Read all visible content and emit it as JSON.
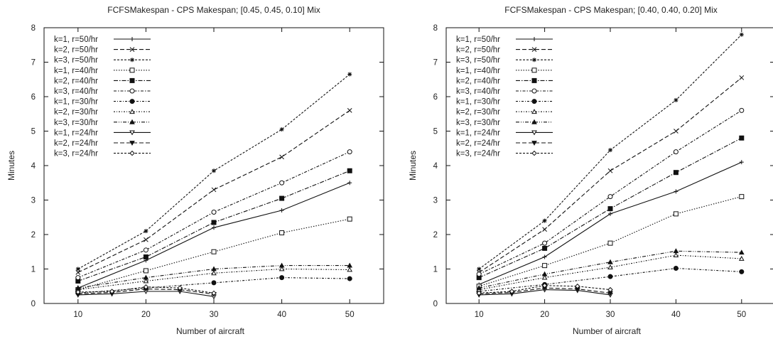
{
  "chart_data": [
    {
      "type": "line",
      "title": "FCFSMakespan - CPS Makespan; [0.45, 0.45, 0.10] Mix",
      "xlabel": "Number of aircraft",
      "ylabel": "Minutes",
      "xlim": [
        5,
        55
      ],
      "ylim": [
        0,
        8
      ],
      "xticks": [
        10,
        20,
        30,
        40,
        50
      ],
      "yticks": [
        0,
        1,
        2,
        3,
        4,
        5,
        6,
        7,
        8
      ],
      "grid": false,
      "legend_position": "top-left",
      "series": [
        {
          "name": "k=1, r=50/hr",
          "marker": "plus",
          "dash": "solid",
          "points": [
            [
              10,
              0.45
            ],
            [
              20,
              1.25
            ],
            [
              30,
              2.2
            ],
            [
              40,
              2.7
            ],
            [
              50,
              3.5
            ]
          ]
        },
        {
          "name": "k=2, r=50/hr",
          "marker": "x",
          "dash": "dash",
          "points": [
            [
              10,
              0.9
            ],
            [
              20,
              1.85
            ],
            [
              30,
              3.3
            ],
            [
              40,
              4.25
            ],
            [
              50,
              5.6
            ]
          ]
        },
        {
          "name": "k=3, r=50/hr",
          "marker": "star",
          "dash": "shortdash",
          "points": [
            [
              10,
              1.0
            ],
            [
              20,
              2.1
            ],
            [
              30,
              3.85
            ],
            [
              40,
              5.05
            ],
            [
              50,
              6.65
            ]
          ]
        },
        {
          "name": "k=1, r=40/hr",
          "marker": "square-open",
          "dash": "dot",
          "points": [
            [
              10,
              0.4
            ],
            [
              20,
              0.95
            ],
            [
              30,
              1.5
            ],
            [
              40,
              2.05
            ],
            [
              50,
              2.45
            ]
          ]
        },
        {
          "name": "k=2, r=40/hr",
          "marker": "square-filled",
          "dash": "dashdot",
          "points": [
            [
              10,
              0.65
            ],
            [
              20,
              1.35
            ],
            [
              30,
              2.35
            ],
            [
              40,
              3.05
            ],
            [
              50,
              3.85
            ]
          ]
        },
        {
          "name": "k=3, r=40/hr",
          "marker": "circle-open",
          "dash": "dashdot2",
          "points": [
            [
              10,
              0.75
            ],
            [
              20,
              1.55
            ],
            [
              30,
              2.65
            ],
            [
              40,
              3.5
            ],
            [
              50,
              4.4
            ]
          ]
        },
        {
          "name": "k=1, r=30/hr",
          "marker": "circle-filled",
          "dash": "dashdot3",
          "points": [
            [
              10,
              0.3
            ],
            [
              20,
              0.45
            ],
            [
              30,
              0.6
            ],
            [
              40,
              0.75
            ],
            [
              50,
              0.72
            ]
          ]
        },
        {
          "name": "k=2, r=30/hr",
          "marker": "triangle-open",
          "dash": "dashdot4",
          "points": [
            [
              10,
              0.4
            ],
            [
              20,
              0.65
            ],
            [
              30,
              0.88
            ],
            [
              40,
              1.0
            ],
            [
              50,
              0.98
            ]
          ]
        },
        {
          "name": "k=3, r=30/hr",
          "marker": "triangle-filled",
          "dash": "dashdot5",
          "points": [
            [
              10,
              0.45
            ],
            [
              20,
              0.75
            ],
            [
              30,
              1.0
            ],
            [
              40,
              1.1
            ],
            [
              50,
              1.1
            ]
          ]
        },
        {
          "name": "k=1, r=24/hr",
          "marker": "triangle-down-open",
          "dash": "solid",
          "points": [
            [
              10,
              0.25
            ],
            [
              15,
              0.28
            ],
            [
              20,
              0.35
            ],
            [
              25,
              0.35
            ],
            [
              30,
              0.2
            ]
          ]
        },
        {
          "name": "k=2, r=24/hr",
          "marker": "triangle-down-filled",
          "dash": "dash",
          "points": [
            [
              10,
              0.28
            ],
            [
              15,
              0.32
            ],
            [
              20,
              0.42
            ],
            [
              25,
              0.4
            ],
            [
              30,
              0.27
            ]
          ]
        },
        {
          "name": "k=3, r=24/hr",
          "marker": "diamond-open",
          "dash": "shortdash",
          "points": [
            [
              10,
              0.33
            ],
            [
              15,
              0.35
            ],
            [
              20,
              0.48
            ],
            [
              25,
              0.45
            ],
            [
              30,
              0.3
            ]
          ]
        }
      ]
    },
    {
      "type": "line",
      "title": "FCFSMakespan - CPS Makespan; [0.40, 0.40, 0.20] Mix",
      "xlabel": "Number of aircraft",
      "ylabel": "Minutes",
      "xlim": [
        5,
        55
      ],
      "ylim": [
        0,
        8
      ],
      "xticks": [
        10,
        20,
        30,
        40,
        50
      ],
      "yticks": [
        0,
        1,
        2,
        3,
        4,
        5,
        6,
        7,
        8
      ],
      "grid": false,
      "legend_position": "top-left",
      "series": [
        {
          "name": "k=1, r=50/hr",
          "marker": "plus",
          "dash": "solid",
          "points": [
            [
              10,
              0.55
            ],
            [
              20,
              1.35
            ],
            [
              30,
              2.6
            ],
            [
              40,
              3.25
            ],
            [
              50,
              4.1
            ]
          ]
        },
        {
          "name": "k=2, r=50/hr",
          "marker": "x",
          "dash": "dash",
          "points": [
            [
              10,
              0.9
            ],
            [
              20,
              2.15
            ],
            [
              30,
              3.85
            ],
            [
              40,
              5.0
            ],
            [
              50,
              6.55
            ]
          ]
        },
        {
          "name": "k=3, r=50/hr",
          "marker": "star",
          "dash": "shortdash",
          "points": [
            [
              10,
              1.0
            ],
            [
              20,
              2.4
            ],
            [
              30,
              4.45
            ],
            [
              40,
              5.9
            ],
            [
              50,
              7.8
            ]
          ]
        },
        {
          "name": "k=1, r=40/hr",
          "marker": "square-open",
          "dash": "dot",
          "points": [
            [
              10,
              0.5
            ],
            [
              20,
              1.1
            ],
            [
              30,
              1.75
            ],
            [
              40,
              2.6
            ],
            [
              50,
              3.1
            ]
          ]
        },
        {
          "name": "k=2, r=40/hr",
          "marker": "square-filled",
          "dash": "dashdot",
          "points": [
            [
              10,
              0.75
            ],
            [
              20,
              1.6
            ],
            [
              30,
              2.75
            ],
            [
              40,
              3.8
            ],
            [
              50,
              4.8
            ]
          ]
        },
        {
          "name": "k=3, r=40/hr",
          "marker": "circle-open",
          "dash": "dashdot2",
          "points": [
            [
              10,
              0.85
            ],
            [
              20,
              1.75
            ],
            [
              30,
              3.1
            ],
            [
              40,
              4.4
            ],
            [
              50,
              5.6
            ]
          ]
        },
        {
          "name": "k=1, r=30/hr",
          "marker": "circle-filled",
          "dash": "dashdot3",
          "points": [
            [
              10,
              0.35
            ],
            [
              20,
              0.55
            ],
            [
              30,
              0.78
            ],
            [
              40,
              1.02
            ],
            [
              50,
              0.92
            ]
          ]
        },
        {
          "name": "k=2, r=30/hr",
          "marker": "triangle-open",
          "dash": "dashdot4",
          "points": [
            [
              10,
              0.4
            ],
            [
              20,
              0.75
            ],
            [
              30,
              1.05
            ],
            [
              40,
              1.4
            ],
            [
              50,
              1.3
            ]
          ]
        },
        {
          "name": "k=3, r=30/hr",
          "marker": "triangle-filled",
          "dash": "dashdot5",
          "points": [
            [
              10,
              0.45
            ],
            [
              20,
              0.85
            ],
            [
              30,
              1.2
            ],
            [
              40,
              1.52
            ],
            [
              50,
              1.48
            ]
          ]
        },
        {
          "name": "k=1, r=24/hr",
          "marker": "triangle-down-open",
          "dash": "solid",
          "points": [
            [
              10,
              0.25
            ],
            [
              15,
              0.28
            ],
            [
              20,
              0.4
            ],
            [
              25,
              0.38
            ],
            [
              30,
              0.25
            ]
          ]
        },
        {
          "name": "k=2, r=24/hr",
          "marker": "triangle-down-filled",
          "dash": "dash",
          "points": [
            [
              10,
              0.28
            ],
            [
              15,
              0.32
            ],
            [
              20,
              0.45
            ],
            [
              25,
              0.42
            ],
            [
              30,
              0.3
            ]
          ]
        },
        {
          "name": "k=3, r=24/hr",
          "marker": "diamond-open",
          "dash": "shortdash",
          "points": [
            [
              10,
              0.3
            ],
            [
              15,
              0.35
            ],
            [
              20,
              0.52
            ],
            [
              25,
              0.5
            ],
            [
              30,
              0.4
            ]
          ]
        }
      ]
    }
  ]
}
